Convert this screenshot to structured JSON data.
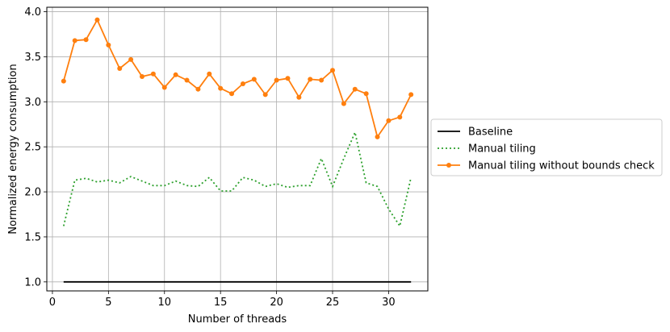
{
  "chart_data": {
    "type": "line",
    "title": "",
    "xlabel": "Number of threads",
    "ylabel": "Normalized energy consumption",
    "xlim": [
      -0.5,
      33.5
    ],
    "ylim": [
      0.9,
      4.05
    ],
    "xticks": [
      0,
      5,
      10,
      15,
      20,
      25,
      30
    ],
    "yticks": [
      1.0,
      1.5,
      2.0,
      2.5,
      3.0,
      3.5,
      4.0
    ],
    "xtick_labels": [
      "0",
      "5",
      "10",
      "15",
      "20",
      "25",
      "30"
    ],
    "ytick_labels": [
      "1.0",
      "1.5",
      "2.0",
      "2.5",
      "3.0",
      "3.5",
      "4.0"
    ],
    "grid": true,
    "legend_position": "right, outside plot",
    "x": [
      1,
      2,
      3,
      4,
      5,
      6,
      7,
      8,
      9,
      10,
      11,
      12,
      13,
      14,
      15,
      16,
      17,
      18,
      19,
      20,
      21,
      22,
      23,
      24,
      25,
      26,
      27,
      28,
      29,
      30,
      31,
      32
    ],
    "series": [
      {
        "name": "Baseline",
        "color": "#000000",
        "style": "solid",
        "values": [
          1,
          1,
          1,
          1,
          1,
          1,
          1,
          1,
          1,
          1,
          1,
          1,
          1,
          1,
          1,
          1,
          1,
          1,
          1,
          1,
          1,
          1,
          1,
          1,
          1,
          1,
          1,
          1,
          1,
          1,
          1,
          1
        ]
      },
      {
        "name": "Manual tiling",
        "color": "#2ca02c",
        "style": "dotted",
        "values": [
          1.62,
          2.13,
          2.15,
          2.11,
          2.13,
          2.1,
          2.17,
          2.12,
          2.07,
          2.07,
          2.12,
          2.07,
          2.06,
          2.16,
          2.01,
          2.01,
          2.16,
          2.13,
          2.06,
          2.09,
          2.05,
          2.07,
          2.07,
          2.37,
          2.06,
          2.37,
          2.66,
          2.1,
          2.06,
          1.81,
          1.62,
          2.16
        ]
      },
      {
        "name": "Manual tiling without bounds check",
        "color": "#ff7f0e",
        "style": "solid-markers",
        "values": [
          3.23,
          3.68,
          3.69,
          3.91,
          3.63,
          3.37,
          3.47,
          3.28,
          3.31,
          3.16,
          3.3,
          3.24,
          3.14,
          3.31,
          3.15,
          3.09,
          3.2,
          3.25,
          3.08,
          3.24,
          3.26,
          3.05,
          3.25,
          3.24,
          3.35,
          2.98,
          3.14,
          3.09,
          2.61,
          2.79,
          2.83,
          3.08
        ]
      }
    ]
  }
}
